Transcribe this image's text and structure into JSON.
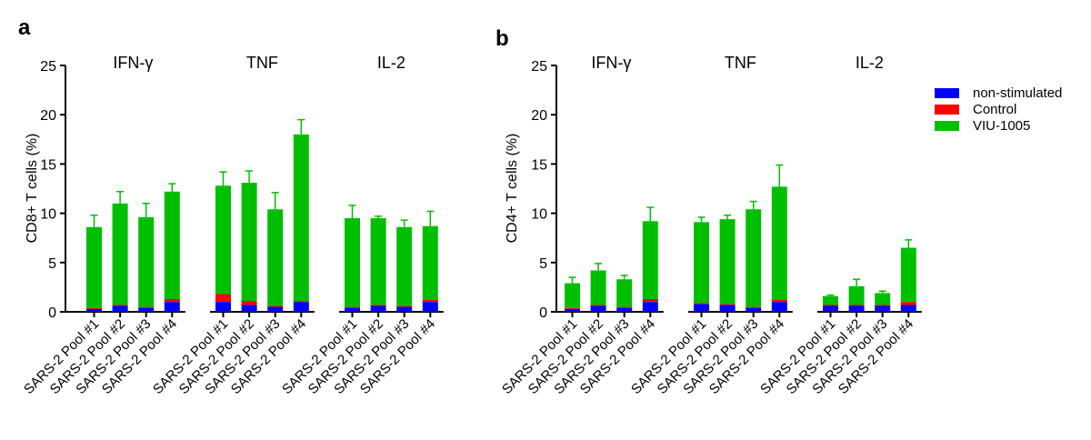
{
  "colors": {
    "non_stimulated": "#0000ff",
    "control": "#ff0000",
    "viu": "#00bf00",
    "axis": "#000000"
  },
  "legend": [
    "non-stimulated",
    "Control",
    "VIU-1005"
  ],
  "chart_data": [
    {
      "panel_label": "a",
      "type": "bar",
      "stacked": true,
      "ylabel": "CD8+ T cells (%)",
      "ylim": [
        0,
        25
      ],
      "yticks": [
        "0",
        "5",
        "10",
        "15",
        "20",
        "25"
      ],
      "groups": [
        "IFN-γ",
        "TNF",
        "IL-2"
      ],
      "categories": [
        "SARS-2 Pool #1",
        "SARS-2 Pool #2",
        "SARS-2 Pool #3",
        "SARS-2 Pool #4"
      ],
      "series": [
        {
          "name": "non-stimulated",
          "values": [
            [
              0.3,
              0.6,
              0.4,
              1.0
            ],
            [
              1.0,
              0.7,
              0.5,
              1.0
            ],
            [
              0.4,
              0.6,
              0.5,
              1.0
            ]
          ],
          "errors": [
            [
              0.3,
              0.6,
              0.4,
              0.3
            ],
            [
              0.4,
              0.7,
              0.3,
              0.2
            ],
            [
              0.4,
              0.6,
              0.3,
              0.2
            ]
          ]
        },
        {
          "name": "Control",
          "values": [
            [
              0.1,
              0.1,
              0.1,
              0.3
            ],
            [
              0.8,
              0.4,
              0.1,
              0.1
            ],
            [
              0.1,
              0.1,
              0.1,
              0.2
            ]
          ],
          "errors": [
            [
              0,
              0,
              0,
              0
            ],
            [
              0,
              0,
              0,
              0
            ],
            [
              0,
              0,
              0,
              0
            ]
          ]
        },
        {
          "name": "VIU-1005",
          "values": [
            [
              8.2,
              10.3,
              9.1,
              10.9
            ],
            [
              11.0,
              12.0,
              9.8,
              16.9
            ],
            [
              9.0,
              8.8,
              8.0,
              7.5
            ]
          ],
          "errors": [
            [
              1.2,
              1.2,
              1.4,
              0.8
            ],
            [
              1.4,
              1.2,
              1.7,
              1.5
            ],
            [
              1.3,
              0.2,
              0.7,
              1.5
            ]
          ]
        }
      ]
    },
    {
      "panel_label": "b",
      "type": "bar",
      "stacked": true,
      "ylabel": "CD4+ T cells (%)",
      "ylim": [
        0,
        25
      ],
      "yticks": [
        "0",
        "5",
        "10",
        "15",
        "20",
        "25"
      ],
      "groups": [
        "IFN-γ",
        "TNF",
        "IL-2"
      ],
      "categories": [
        "SARS-2 Pool #1",
        "SARS-2 Pool #2",
        "SARS-2 Pool #3",
        "SARS-2 Pool #4"
      ],
      "series": [
        {
          "name": "non-stimulated",
          "values": [
            [
              0.3,
              0.6,
              0.4,
              1.0
            ],
            [
              0.8,
              0.7,
              0.4,
              1.0
            ],
            [
              0.6,
              0.6,
              0.6,
              0.7
            ]
          ],
          "errors": [
            [
              0.3,
              0.6,
              0.4,
              0.2
            ],
            [
              0.3,
              0.6,
              0.4,
              0.2
            ],
            [
              0.1,
              0.1,
              0.1,
              0.1
            ]
          ]
        },
        {
          "name": "Control",
          "values": [
            [
              0.1,
              0.1,
              0.1,
              0.3
            ],
            [
              0.1,
              0.1,
              0.1,
              0.2
            ],
            [
              0.1,
              0.1,
              0.1,
              0.3
            ]
          ],
          "errors": [
            [
              0,
              0,
              0,
              0
            ],
            [
              0,
              0,
              0,
              0
            ],
            [
              0,
              0,
              0,
              0
            ]
          ]
        },
        {
          "name": "VIU-1005",
          "values": [
            [
              2.5,
              3.5,
              2.8,
              7.9
            ],
            [
              8.2,
              8.6,
              9.9,
              11.5
            ],
            [
              0.9,
              1.9,
              1.2,
              5.5
            ]
          ],
          "errors": [
            [
              0.6,
              0.7,
              0.4,
              1.4
            ],
            [
              0.5,
              0.4,
              0.8,
              2.2
            ],
            [
              0.1,
              0.7,
              0.2,
              0.8
            ]
          ]
        }
      ]
    }
  ]
}
